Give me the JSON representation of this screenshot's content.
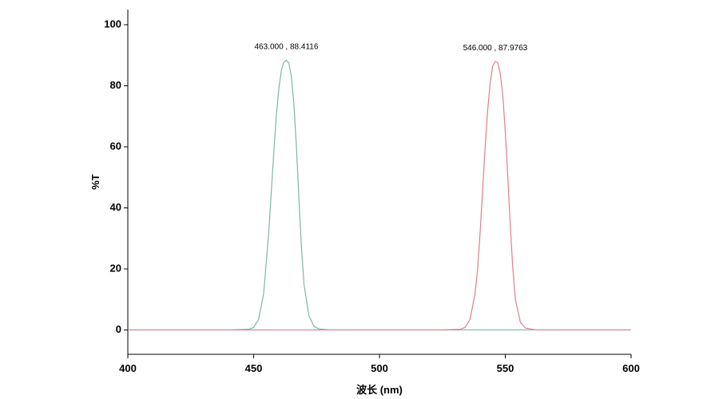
{
  "chart_data": {
    "type": "line",
    "xlabel": "波长 (nm)",
    "ylabel": "%T",
    "xlim": [
      400,
      600
    ],
    "ylim": [
      -8,
      105
    ],
    "x_ticks": [
      400,
      450,
      500,
      550,
      600
    ],
    "y_ticks": [
      0,
      20,
      40,
      60,
      80,
      100
    ],
    "grid": false,
    "series": [
      {
        "color": "#7fb5a8",
        "x": [
          400,
          440,
          448,
          450,
          452,
          454,
          456,
          457,
          458,
          459,
          460,
          461,
          462,
          463,
          464,
          465,
          466,
          467,
          468,
          469,
          470,
          472,
          474,
          476,
          480,
          600
        ],
        "y": [
          0,
          0,
          0.2,
          0.8,
          3.5,
          12,
          32,
          45,
          58,
          70,
          79,
          85,
          87.8,
          88.4,
          87.5,
          83,
          74,
          60,
          43,
          27,
          15,
          4.5,
          1.2,
          0.3,
          0,
          0
        ]
      },
      {
        "color": "#d9818e",
        "x": [
          400,
          525,
          532,
          534,
          536,
          538,
          539,
          540,
          541,
          542,
          543,
          544,
          545,
          546,
          547,
          548,
          549,
          550,
          551,
          552,
          553,
          554,
          556,
          558,
          562,
          600
        ],
        "y": [
          0,
          0,
          0.2,
          0.8,
          3.5,
          12,
          20,
          32,
          46,
          60,
          72,
          81,
          86.5,
          88.0,
          87.6,
          84,
          77,
          65,
          50,
          34,
          20,
          10,
          2.5,
          0.6,
          0,
          0
        ]
      }
    ],
    "annotations": [
      {
        "text": "463.000 , 88.4116",
        "x": 463.0,
        "y": 88.4116
      },
      {
        "text": "546.000 , 87.9763",
        "x": 546.0,
        "y": 87.9763
      }
    ]
  }
}
